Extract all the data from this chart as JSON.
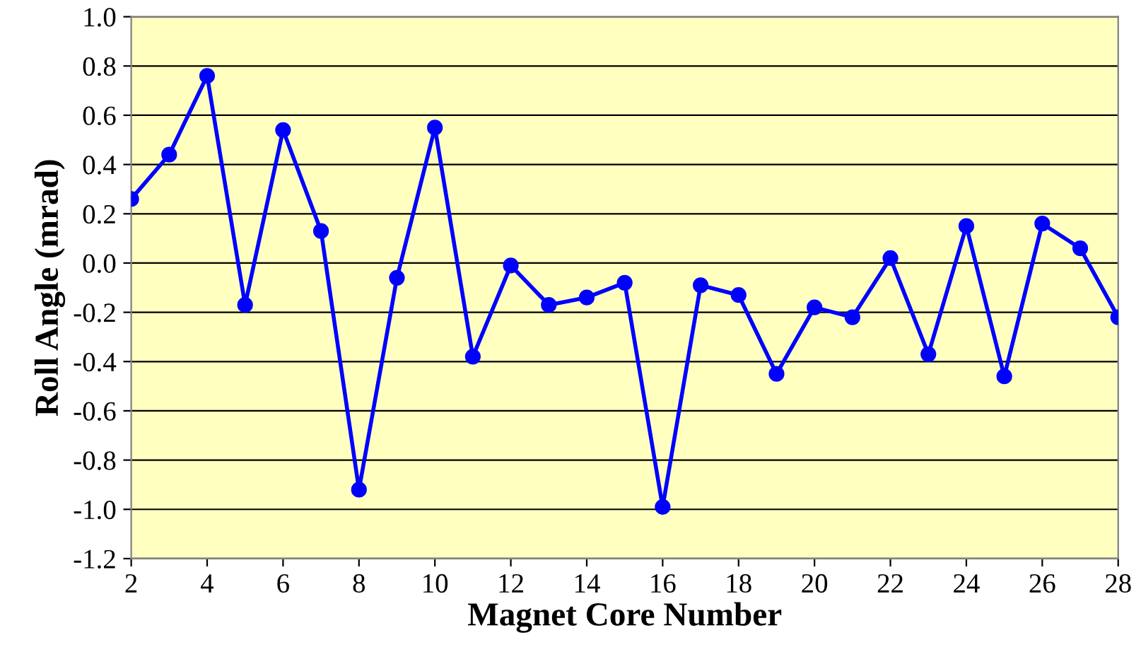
{
  "chart_data": {
    "type": "line",
    "xlabel": "Magnet Core Number",
    "ylabel": "Roll Angle (mrad)",
    "x": [
      2,
      3,
      4,
      5,
      6,
      7,
      8,
      9,
      10,
      11,
      12,
      13,
      14,
      15,
      16,
      17,
      18,
      19,
      20,
      21,
      22,
      23,
      24,
      25,
      26,
      27,
      28
    ],
    "series": [
      {
        "color": "#0000ff",
        "values": [
          0.26,
          0.44,
          0.76,
          -0.17,
          0.54,
          0.13,
          -0.92,
          -0.06,
          0.55,
          -0.38,
          -0.01,
          -0.17,
          -0.14,
          -0.08,
          -0.99,
          -0.09,
          -0.13,
          -0.45,
          -0.18,
          -0.22,
          0.02,
          -0.37,
          0.15,
          -0.46,
          0.16,
          0.06,
          -0.22
        ]
      }
    ],
    "xlim": [
      2,
      28
    ],
    "xticks": [
      2,
      4,
      6,
      8,
      10,
      12,
      14,
      16,
      18,
      20,
      22,
      24,
      26,
      28
    ],
    "ylim": [
      -1.2,
      1.0
    ],
    "yticks": [
      {
        "value": -1.2,
        "label": "-1.2"
      },
      {
        "value": -1.0,
        "label": "-1.0"
      },
      {
        "value": -0.8,
        "label": "-0.8"
      },
      {
        "value": -0.6,
        "label": "-0.6"
      },
      {
        "value": -0.4,
        "label": "-0.4"
      },
      {
        "value": -0.2,
        "label": "-0.2"
      },
      {
        "value": 0.0,
        "label": "0.0"
      },
      {
        "value": 0.2,
        "label": "0.2"
      },
      {
        "value": 0.4,
        "label": "0.4"
      },
      {
        "value": 0.6,
        "label": "0.6"
      },
      {
        "value": 0.8,
        "label": "0.8"
      },
      {
        "value": 1.0,
        "label": "1.0"
      }
    ],
    "grid": "y",
    "marker": "circle",
    "line_style": "solid"
  }
}
